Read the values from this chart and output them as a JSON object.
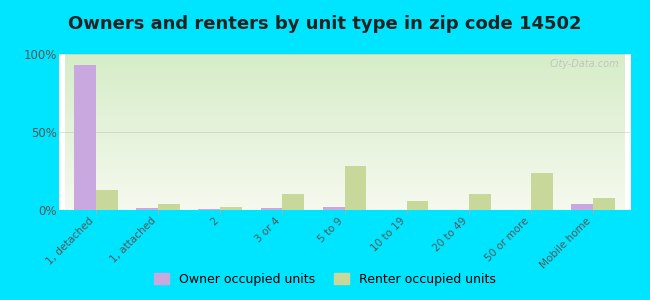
{
  "title": "Owners and renters by unit type in zip code 14502",
  "categories": [
    "1, detached",
    "1, attached",
    "2",
    "3 or 4",
    "5 to 9",
    "10 to 19",
    "20 to 49",
    "50 or more",
    "Mobile home"
  ],
  "owner_values": [
    93,
    1,
    0.5,
    1,
    2,
    0,
    0,
    0,
    4
  ],
  "renter_values": [
    13,
    4,
    2,
    10,
    28,
    6,
    10,
    24,
    8
  ],
  "owner_color": "#c9a8e0",
  "renter_color": "#c8d89a",
  "background_top": "#d6edc8",
  "background_bottom": "#f5f9ee",
  "bar_width": 0.35,
  "ylim": [
    0,
    100
  ],
  "yticks": [
    0,
    50,
    100
  ],
  "ytick_labels": [
    "0%",
    "50%",
    "100%"
  ],
  "grid_color": "#aaaaaa",
  "bg_outer": "#00e5ff",
  "watermark": "City-Data.com",
  "legend_owner": "Owner occupied units",
  "legend_renter": "Renter occupied units",
  "title_fontsize": 13,
  "tick_fontsize": 7.5
}
